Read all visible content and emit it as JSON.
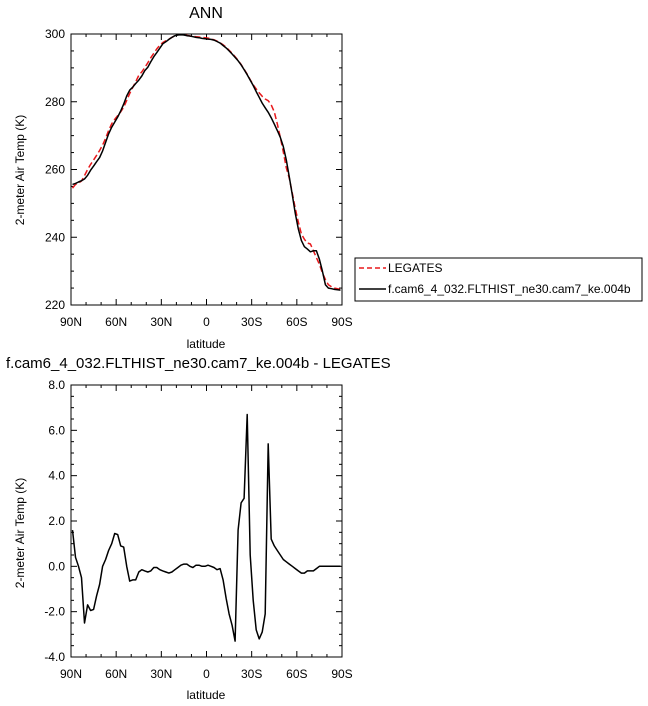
{
  "chart_data": [
    {
      "type": "line",
      "title": "ANN",
      "xlabel": "latitude",
      "ylabel": "2-meter Air Temp (K)",
      "x_ticks": [
        "90N",
        "60N",
        "30N",
        "0",
        "30S",
        "60S",
        "90S"
      ],
      "x_tick_values": [
        90,
        60,
        30,
        0,
        -30,
        -60,
        -90
      ],
      "y_ticks": [
        "220",
        "240",
        "260",
        "280",
        "300"
      ],
      "xlim": [
        90,
        -90
      ],
      "ylim": [
        220,
        300
      ],
      "legend_position": "right",
      "series": [
        {
          "name": "LEGATES",
          "color": "#e8191c",
          "dash": "dashed",
          "x": [
            89,
            87,
            85,
            83,
            81,
            79,
            77,
            75,
            73,
            71,
            69,
            67,
            65,
            63,
            61,
            59,
            57,
            55,
            53,
            51,
            49,
            47,
            45,
            43,
            41,
            39,
            37,
            35,
            33,
            31,
            29,
            27,
            25,
            23,
            21,
            19,
            17,
            15,
            13,
            11,
            9,
            7,
            5,
            3,
            1,
            -1,
            -3,
            -5,
            -7,
            -9,
            -11,
            -13,
            -15,
            -17,
            -19,
            -21,
            -23,
            -25,
            -27,
            -29,
            -31,
            -33,
            -35,
            -37,
            -39,
            -41,
            -43,
            -45,
            -47,
            -49,
            -51,
            -53,
            -55,
            -57,
            -59,
            -61,
            -63,
            -65,
            -67,
            -69,
            -71,
            -73,
            -75,
            -77,
            -79,
            -81,
            -83,
            -85,
            -87,
            -89
          ],
          "y": [
            254.5,
            255.6,
            256.0,
            256.6,
            258.2,
            260.0,
            261.5,
            262.8,
            264.2,
            265.6,
            267.2,
            269.2,
            271.5,
            273.5,
            274.8,
            275.9,
            277.0,
            278.4,
            280.4,
            282.4,
            284.2,
            285.9,
            287.8,
            288.8,
            290.1,
            291.5,
            293.0,
            294.3,
            295.6,
            296.7,
            297.5,
            298.0,
            298.5,
            299.0,
            299.5,
            299.8,
            299.9,
            299.8,
            299.6,
            299.4,
            299.3,
            299.2,
            299.1,
            299.0,
            298.9,
            298.8,
            298.6,
            298.3,
            297.9,
            297.4,
            296.8,
            296.1,
            295.2,
            294.3,
            293.3,
            292.2,
            291.0,
            289.6,
            288.1,
            286.5,
            285.0,
            283.8,
            282.6,
            281.6,
            280.8,
            280.3,
            279.1,
            277.0,
            273.5,
            269.5,
            265.2,
            260.5,
            257.4,
            253.0,
            248.5,
            244.5,
            241.0,
            239.4,
            238.3,
            238.0,
            236.0,
            234.0,
            232.0,
            229.5,
            227.5,
            226.0,
            225.4,
            225.0,
            224.8,
            224.6
          ]
        },
        {
          "name": "f.cam6_4_032.FLTHIST_ne30.cam7_ke.004b",
          "color": "#000000",
          "dash": "solid",
          "x": [
            89,
            87,
            85,
            83,
            81,
            79,
            77,
            75,
            73,
            71,
            69,
            67,
            65,
            63,
            61,
            59,
            57,
            55,
            53,
            51,
            49,
            47,
            45,
            43,
            41,
            39,
            37,
            35,
            33,
            31,
            29,
            27,
            25,
            23,
            21,
            19,
            17,
            15,
            13,
            11,
            9,
            7,
            5,
            3,
            1,
            -1,
            -3,
            -5,
            -7,
            -9,
            -11,
            -13,
            -15,
            -17,
            -19,
            -21,
            -23,
            -25,
            -27,
            -29,
            -31,
            -33,
            -35,
            -37,
            -39,
            -41,
            -43,
            -45,
            -47,
            -49,
            -51,
            -53,
            -55,
            -57,
            -59,
            -61,
            -63,
            -65,
            -67,
            -69,
            -71,
            -73,
            -75,
            -77,
            -79,
            -81,
            -83,
            -85,
            -87,
            -89
          ],
          "y": [
            255.6,
            255.9,
            256.3,
            256.7,
            257.2,
            258.3,
            259.8,
            261.0,
            262.3,
            263.5,
            265.5,
            268.0,
            270.5,
            272.5,
            274.0,
            275.5,
            277.3,
            279.3,
            281.7,
            283.4,
            284.3,
            285.4,
            286.4,
            287.6,
            289.2,
            290.2,
            291.8,
            293.3,
            294.5,
            295.8,
            297.1,
            297.7,
            298.4,
            299.0,
            299.5,
            299.7,
            299.8,
            299.7,
            299.5,
            299.4,
            299.2,
            299.0,
            298.9,
            298.7,
            298.6,
            298.5,
            298.4,
            298.2,
            297.8,
            297.3,
            296.6,
            295.9,
            295.0,
            294.1,
            293.1,
            292.1,
            290.9,
            289.5,
            288.0,
            286.4,
            284.8,
            283.0,
            281.3,
            279.6,
            278.2,
            276.9,
            275.3,
            273.4,
            271.5,
            269.5,
            266.8,
            262.8,
            257.8,
            252.5,
            247.0,
            242.5,
            239.0,
            237.2,
            236.5,
            235.7,
            236.0,
            236.0,
            233.5,
            230.0,
            226.0,
            225.0,
            224.8,
            224.6,
            224.5,
            224.4
          ]
        }
      ]
    },
    {
      "type": "line",
      "title": "f.cam6_4_032.FLTHIST_ne30.cam7_ke.004b - LEGATES",
      "xlabel": "latitude",
      "ylabel": "2-meter Air Temp (K)",
      "x_ticks": [
        "90N",
        "60N",
        "30N",
        "0",
        "30S",
        "60S",
        "90S"
      ],
      "x_tick_values": [
        90,
        60,
        30,
        0,
        -30,
        -60,
        -90
      ],
      "y_ticks": [
        "-4.0",
        "-2.0",
        "0.0",
        "2.0",
        "4.0",
        "6.0",
        "8.0"
      ],
      "xlim": [
        90,
        -90
      ],
      "ylim": [
        -4,
        8
      ],
      "series": [
        {
          "name": "",
          "color": "#000000",
          "dash": "solid",
          "x": [
            89,
            87,
            85,
            83,
            81,
            79,
            77,
            75,
            73,
            71,
            69,
            67,
            65,
            63,
            61,
            59,
            57,
            55,
            53,
            51,
            49,
            47,
            45,
            43,
            41,
            39,
            37,
            35,
            33,
            31,
            29,
            27,
            25,
            23,
            21,
            19,
            17,
            15,
            13,
            11,
            9,
            7,
            5,
            3,
            1,
            -1,
            -3,
            -5,
            -7,
            -9,
            -11,
            -13,
            -15,
            -17,
            -19,
            -21,
            -23,
            -25,
            -27,
            -29,
            -31,
            -33,
            -35,
            -37,
            -39,
            -41,
            -43,
            -45,
            -47,
            -49,
            -51,
            -53,
            -55,
            -57,
            -59,
            -61,
            -63,
            -65,
            -67,
            -69,
            -71,
            -73,
            -75,
            -77,
            -79,
            -81,
            -83,
            -85,
            -87,
            -89
          ],
          "y": [
            1.6,
            0.4,
            0.0,
            -0.5,
            -2.5,
            -1.7,
            -1.95,
            -1.9,
            -1.3,
            -0.8,
            0.0,
            0.3,
            0.7,
            1.0,
            1.45,
            1.4,
            0.9,
            0.85,
            0.0,
            -0.65,
            -0.6,
            -0.6,
            -0.25,
            -0.15,
            -0.2,
            -0.25,
            -0.2,
            -0.05,
            -0.05,
            -0.15,
            -0.2,
            -0.25,
            -0.3,
            -0.25,
            -0.15,
            -0.05,
            0.05,
            0.1,
            0.1,
            0.0,
            -0.05,
            0.05,
            0.05,
            0.0,
            0.0,
            0.05,
            0.0,
            -0.05,
            -0.15,
            -0.1,
            -0.6,
            -1.4,
            -2.1,
            -2.6,
            -3.3,
            1.6,
            2.8,
            3.0,
            6.7,
            0.5,
            -1.5,
            -2.8,
            -3.2,
            -2.9,
            -2.1,
            5.4,
            1.2,
            0.9,
            0.7,
            0.5,
            0.3,
            0.2,
            0.1,
            0.0,
            -0.1,
            -0.2,
            -0.3,
            -0.3,
            -0.2,
            -0.2,
            -0.2,
            -0.1,
            0.0,
            0.0,
            0.0,
            0.0,
            0.0,
            0.0,
            0.0,
            0.0
          ]
        }
      ]
    }
  ]
}
